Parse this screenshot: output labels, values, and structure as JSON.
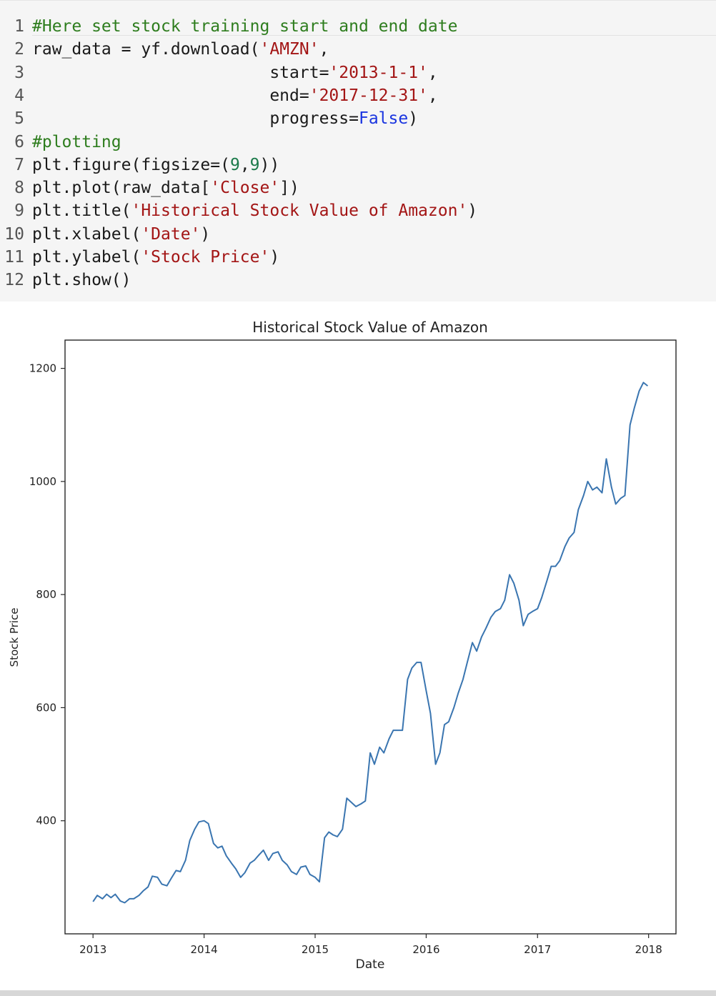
{
  "code_cell": {
    "lines": [
      {
        "num": "1",
        "tokens": [
          {
            "t": "#Here set stock training start and end date",
            "c": "cm"
          }
        ]
      },
      {
        "num": "2",
        "tokens": [
          {
            "t": "raw_data = yf.download(",
            "c": ""
          },
          {
            "t": "'AMZN'",
            "c": "st"
          },
          {
            "t": ",",
            "c": ""
          }
        ]
      },
      {
        "num": "3",
        "tokens": [
          {
            "t": "                        start=",
            "c": ""
          },
          {
            "t": "'2013-1-1'",
            "c": "st"
          },
          {
            "t": ",",
            "c": ""
          }
        ]
      },
      {
        "num": "4",
        "tokens": [
          {
            "t": "                        end=",
            "c": ""
          },
          {
            "t": "'2017-12-31'",
            "c": "st"
          },
          {
            "t": ",",
            "c": ""
          }
        ]
      },
      {
        "num": "5",
        "tokens": [
          {
            "t": "                        progress=",
            "c": ""
          },
          {
            "t": "False",
            "c": "kw"
          },
          {
            "t": ")",
            "c": ""
          }
        ]
      },
      {
        "num": "6",
        "tokens": [
          {
            "t": "#plotting",
            "c": "cm"
          }
        ]
      },
      {
        "num": "7",
        "tokens": [
          {
            "t": "plt.figure(figsize=(",
            "c": ""
          },
          {
            "t": "9",
            "c": "nm"
          },
          {
            "t": ",",
            "c": ""
          },
          {
            "t": "9",
            "c": "nm"
          },
          {
            "t": "))",
            "c": ""
          }
        ]
      },
      {
        "num": "8",
        "tokens": [
          {
            "t": "plt.plot(raw_data[",
            "c": ""
          },
          {
            "t": "'Close'",
            "c": "st"
          },
          {
            "t": "])",
            "c": ""
          }
        ]
      },
      {
        "num": "9",
        "tokens": [
          {
            "t": "plt.title(",
            "c": ""
          },
          {
            "t": "'Historical Stock Value of Amazon'",
            "c": "st"
          },
          {
            "t": ")",
            "c": ""
          }
        ]
      },
      {
        "num": "10",
        "tokens": [
          {
            "t": "plt.xlabel(",
            "c": ""
          },
          {
            "t": "'Date'",
            "c": "st"
          },
          {
            "t": ")",
            "c": ""
          }
        ]
      },
      {
        "num": "11",
        "tokens": [
          {
            "t": "plt.ylabel(",
            "c": ""
          },
          {
            "t": "'Stock Price'",
            "c": "st"
          },
          {
            "t": ")",
            "c": ""
          }
        ]
      },
      {
        "num": "12",
        "tokens": [
          {
            "t": "plt.show()",
            "c": ""
          }
        ]
      }
    ]
  },
  "colors": {
    "line": "#3a75b0",
    "comment": "#2e7d1e",
    "string": "#a31515",
    "keyword": "#1a35e0",
    "number": "#1b7a4a"
  },
  "chart_data": {
    "type": "line",
    "title": "Historical Stock Value of Amazon",
    "xlabel": "Date",
    "ylabel": "Stock Price",
    "xlim": [
      "2012-10-01",
      "2018-04-01"
    ],
    "ylim": [
      200,
      1250
    ],
    "grid": false,
    "x_ticks": [
      "2013",
      "2014",
      "2015",
      "2016",
      "2017",
      "2018"
    ],
    "y_ticks": [
      "400",
      "600",
      "800",
      "1000",
      "1200"
    ],
    "y_tick_values": [
      400,
      600,
      800,
      1000,
      1200
    ],
    "series": [
      {
        "x": [
          "2013-01-01",
          "2013-01-15",
          "2013-02-01",
          "2013-02-15",
          "2013-03-01",
          "2013-03-15",
          "2013-04-01",
          "2013-04-15",
          "2013-05-01",
          "2013-05-15",
          "2013-06-01",
          "2013-06-15",
          "2013-07-01",
          "2013-07-15",
          "2013-08-01",
          "2013-08-15",
          "2013-09-01",
          "2013-09-15",
          "2013-10-01",
          "2013-10-15",
          "2013-11-01",
          "2013-11-15",
          "2013-12-01",
          "2013-12-15",
          "2014-01-01",
          "2014-01-15",
          "2014-02-01",
          "2014-02-15",
          "2014-03-01",
          "2014-03-15",
          "2014-04-01",
          "2014-04-15",
          "2014-05-01",
          "2014-05-15",
          "2014-06-01",
          "2014-06-15",
          "2014-07-01",
          "2014-07-15",
          "2014-08-01",
          "2014-08-15",
          "2014-09-01",
          "2014-09-15",
          "2014-10-01",
          "2014-10-15",
          "2014-11-01",
          "2014-11-15",
          "2014-12-01",
          "2014-12-15",
          "2015-01-01",
          "2015-01-15",
          "2015-02-01",
          "2015-02-15",
          "2015-03-01",
          "2015-03-15",
          "2015-04-01",
          "2015-04-15",
          "2015-05-01",
          "2015-05-15",
          "2015-06-01",
          "2015-06-15",
          "2015-07-01",
          "2015-07-15",
          "2015-08-01",
          "2015-08-15",
          "2015-09-01",
          "2015-09-15",
          "2015-10-01",
          "2015-10-15",
          "2015-11-01",
          "2015-11-15",
          "2015-12-01",
          "2015-12-15",
          "2016-01-01",
          "2016-01-15",
          "2016-02-01",
          "2016-02-15",
          "2016-03-01",
          "2016-03-15",
          "2016-04-01",
          "2016-04-15",
          "2016-05-01",
          "2016-05-15",
          "2016-06-01",
          "2016-06-15",
          "2016-07-01",
          "2016-07-15",
          "2016-08-01",
          "2016-08-15",
          "2016-09-01",
          "2016-09-15",
          "2016-10-01",
          "2016-10-15",
          "2016-11-01",
          "2016-11-15",
          "2016-12-01",
          "2016-12-15",
          "2017-01-01",
          "2017-01-15",
          "2017-02-01",
          "2017-02-15",
          "2017-03-01",
          "2017-03-15",
          "2017-04-01",
          "2017-04-15",
          "2017-05-01",
          "2017-05-15",
          "2017-06-01",
          "2017-06-15",
          "2017-07-01",
          "2017-07-15",
          "2017-08-01",
          "2017-08-15",
          "2017-09-01",
          "2017-09-15",
          "2017-10-01",
          "2017-10-15",
          "2017-11-01",
          "2017-11-15",
          "2017-12-01",
          "2017-12-15",
          "2017-12-29"
        ],
        "values": [
          257,
          268,
          262,
          270,
          264,
          270,
          258,
          255,
          262,
          262,
          268,
          276,
          283,
          302,
          300,
          288,
          285,
          298,
          312,
          310,
          330,
          365,
          385,
          398,
          400,
          395,
          360,
          352,
          355,
          338,
          325,
          315,
          300,
          308,
          325,
          330,
          340,
          348,
          330,
          342,
          345,
          330,
          322,
          310,
          305,
          318,
          320,
          305,
          300,
          292,
          370,
          380,
          375,
          372,
          385,
          440,
          432,
          425,
          430,
          435,
          520,
          500,
          530,
          520,
          545,
          560,
          560,
          560,
          650,
          670,
          680,
          680,
          630,
          590,
          500,
          520,
          570,
          575,
          600,
          625,
          650,
          680,
          715,
          700,
          725,
          740,
          760,
          770,
          775,
          790,
          835,
          820,
          790,
          745,
          765,
          770,
          775,
          795,
          825,
          850,
          850,
          860,
          885,
          900,
          910,
          950,
          975,
          1000,
          985,
          990,
          980,
          1040,
          990,
          960,
          970,
          975,
          1100,
          1130,
          1160,
          1175,
          1169
        ]
      }
    ]
  }
}
